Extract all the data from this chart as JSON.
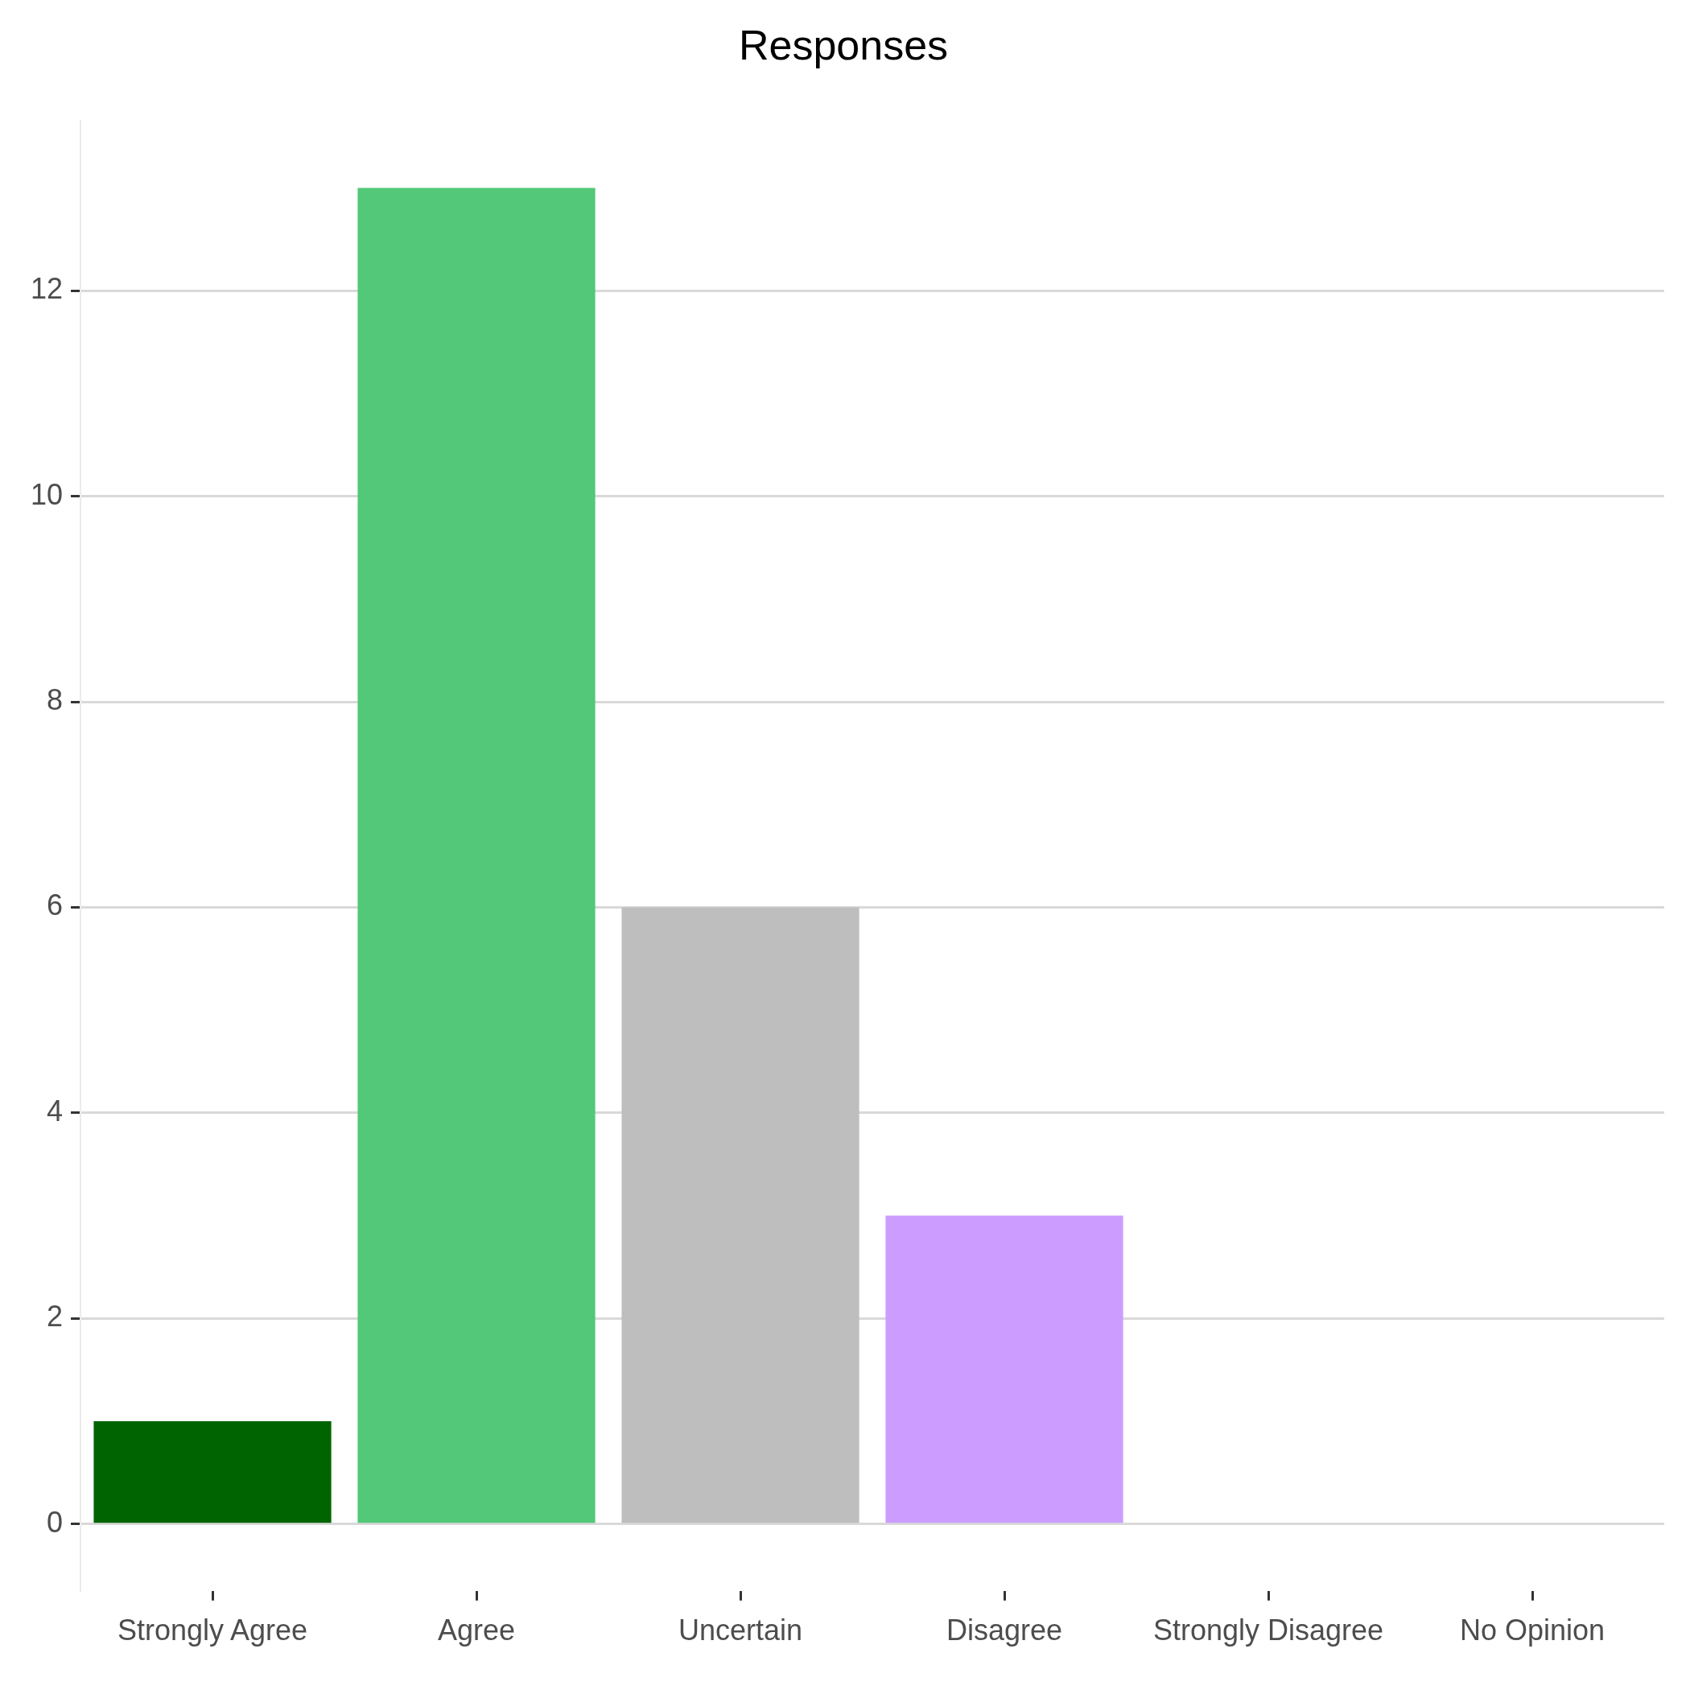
{
  "chart_data": {
    "type": "bar",
    "title": "Responses",
    "categories": [
      "Strongly Agree",
      "Agree",
      "Uncertain",
      "Disagree",
      "Strongly Disagree",
      "No Opinion"
    ],
    "values": [
      1,
      13,
      6,
      3,
      0,
      0
    ],
    "colors": [
      "#006400",
      "#52c878",
      "#bebebe",
      "#cc9dff",
      "#9b30ff",
      "#808080"
    ],
    "ylim": [
      -0.65,
      13.65
    ],
    "yticks": [
      0,
      2,
      4,
      6,
      8,
      10,
      12
    ],
    "grid": "y",
    "legend": false
  }
}
